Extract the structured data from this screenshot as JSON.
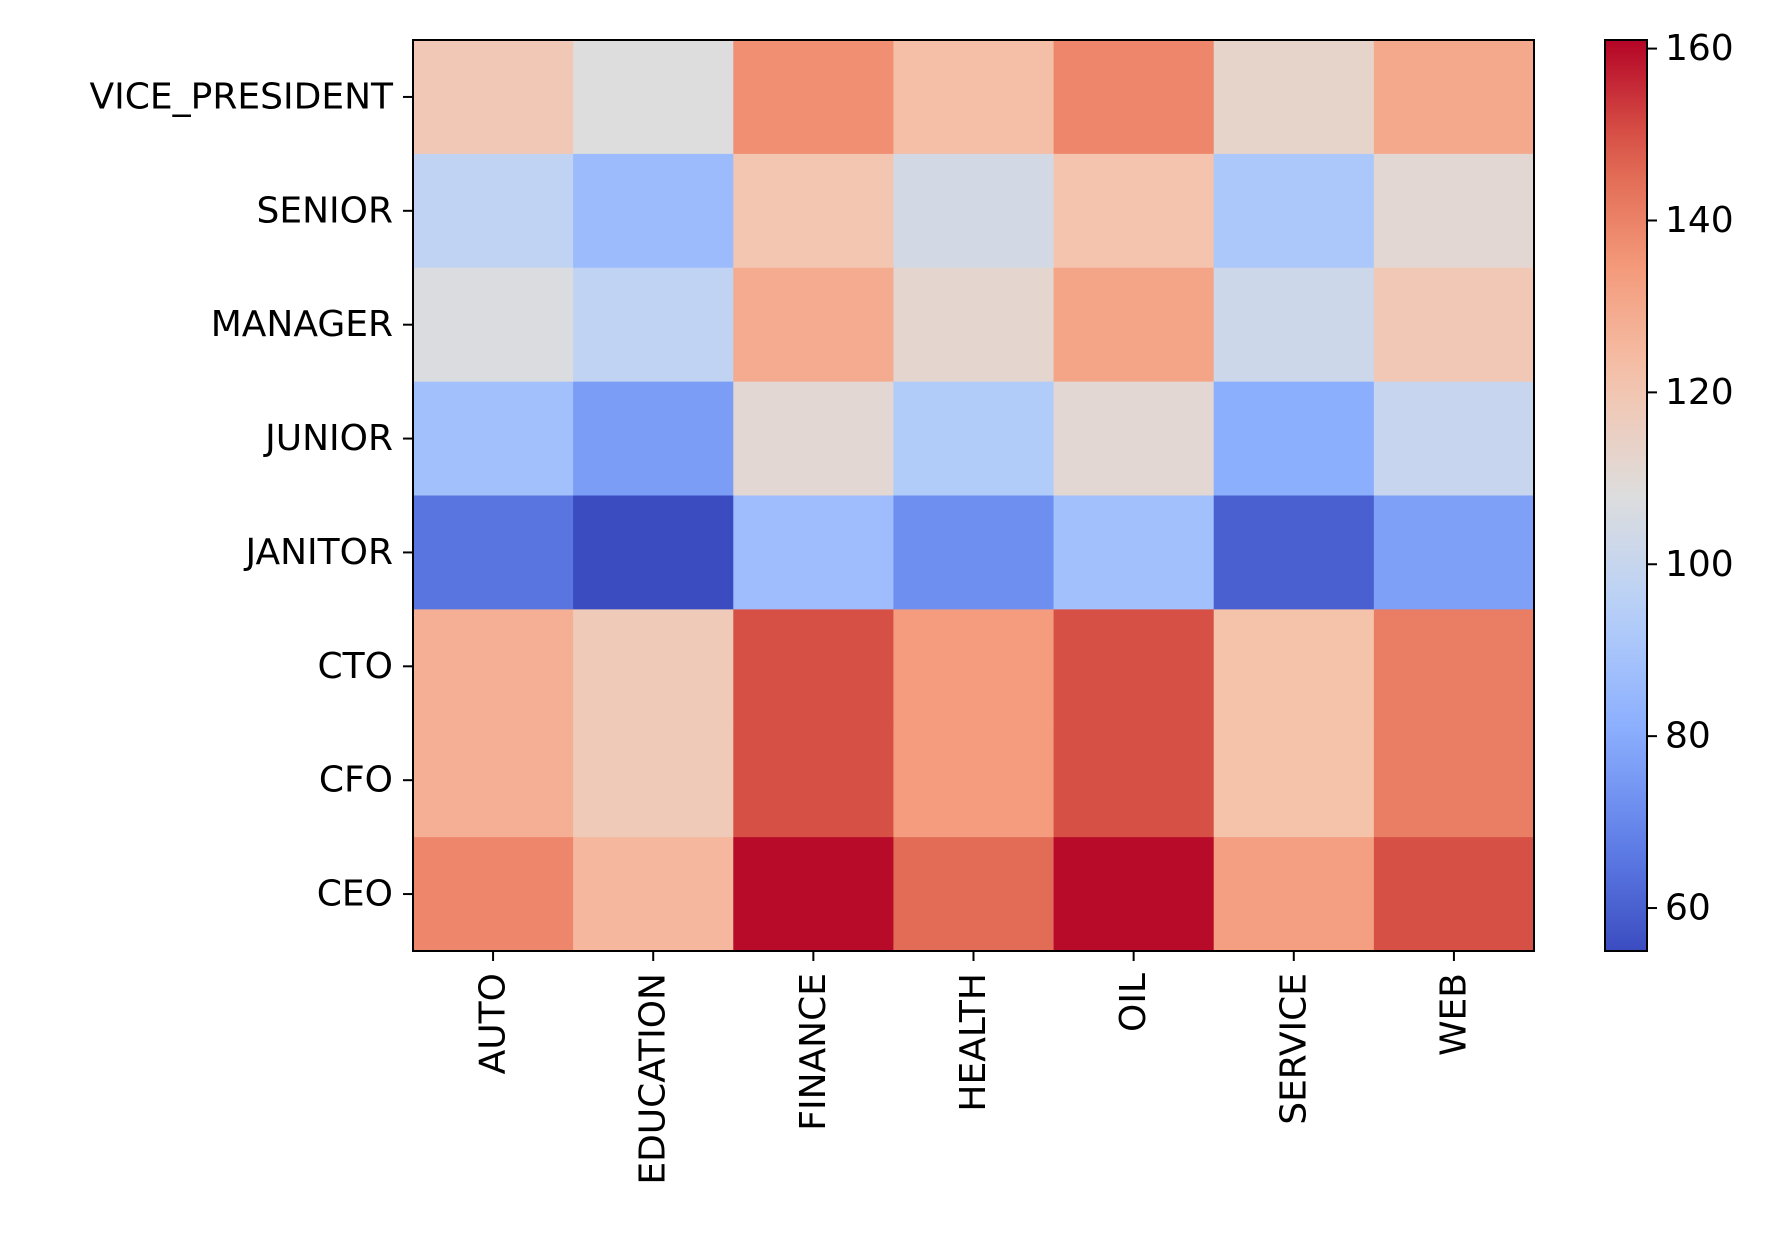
{
  "chart_data": {
    "type": "heatmap",
    "colormap": "coolwarm",
    "rows": [
      "VICE_PRESIDENT",
      "SENIOR",
      "MANAGER",
      "JUNIOR",
      "JANITOR",
      "CTO",
      "CFO",
      "CEO"
    ],
    "columns": [
      "AUTO",
      "EDUCATION",
      "FINANCE",
      "HEALTH",
      "OIL",
      "SERVICE",
      "WEB"
    ],
    "values": [
      [
        119,
        108,
        137,
        123,
        139,
        113,
        130
      ],
      [
        98,
        86,
        120,
        104,
        121,
        91,
        111
      ],
      [
        107,
        98,
        129,
        112,
        131,
        102,
        119
      ],
      [
        88,
        76,
        111,
        93,
        111,
        81,
        100
      ],
      [
        65,
        55,
        87,
        72,
        88,
        60,
        77
      ],
      [
        128,
        118,
        150,
        134,
        150,
        122,
        141
      ],
      [
        128,
        118,
        150,
        134,
        150,
        122,
        141
      ],
      [
        139,
        125,
        160,
        145,
        160,
        133,
        150
      ]
    ],
    "colorbar": {
      "min": 55,
      "max": 161,
      "ticks": [
        60,
        80,
        100,
        120,
        140,
        160
      ]
    },
    "title": "",
    "xlabel": "",
    "ylabel": ""
  }
}
